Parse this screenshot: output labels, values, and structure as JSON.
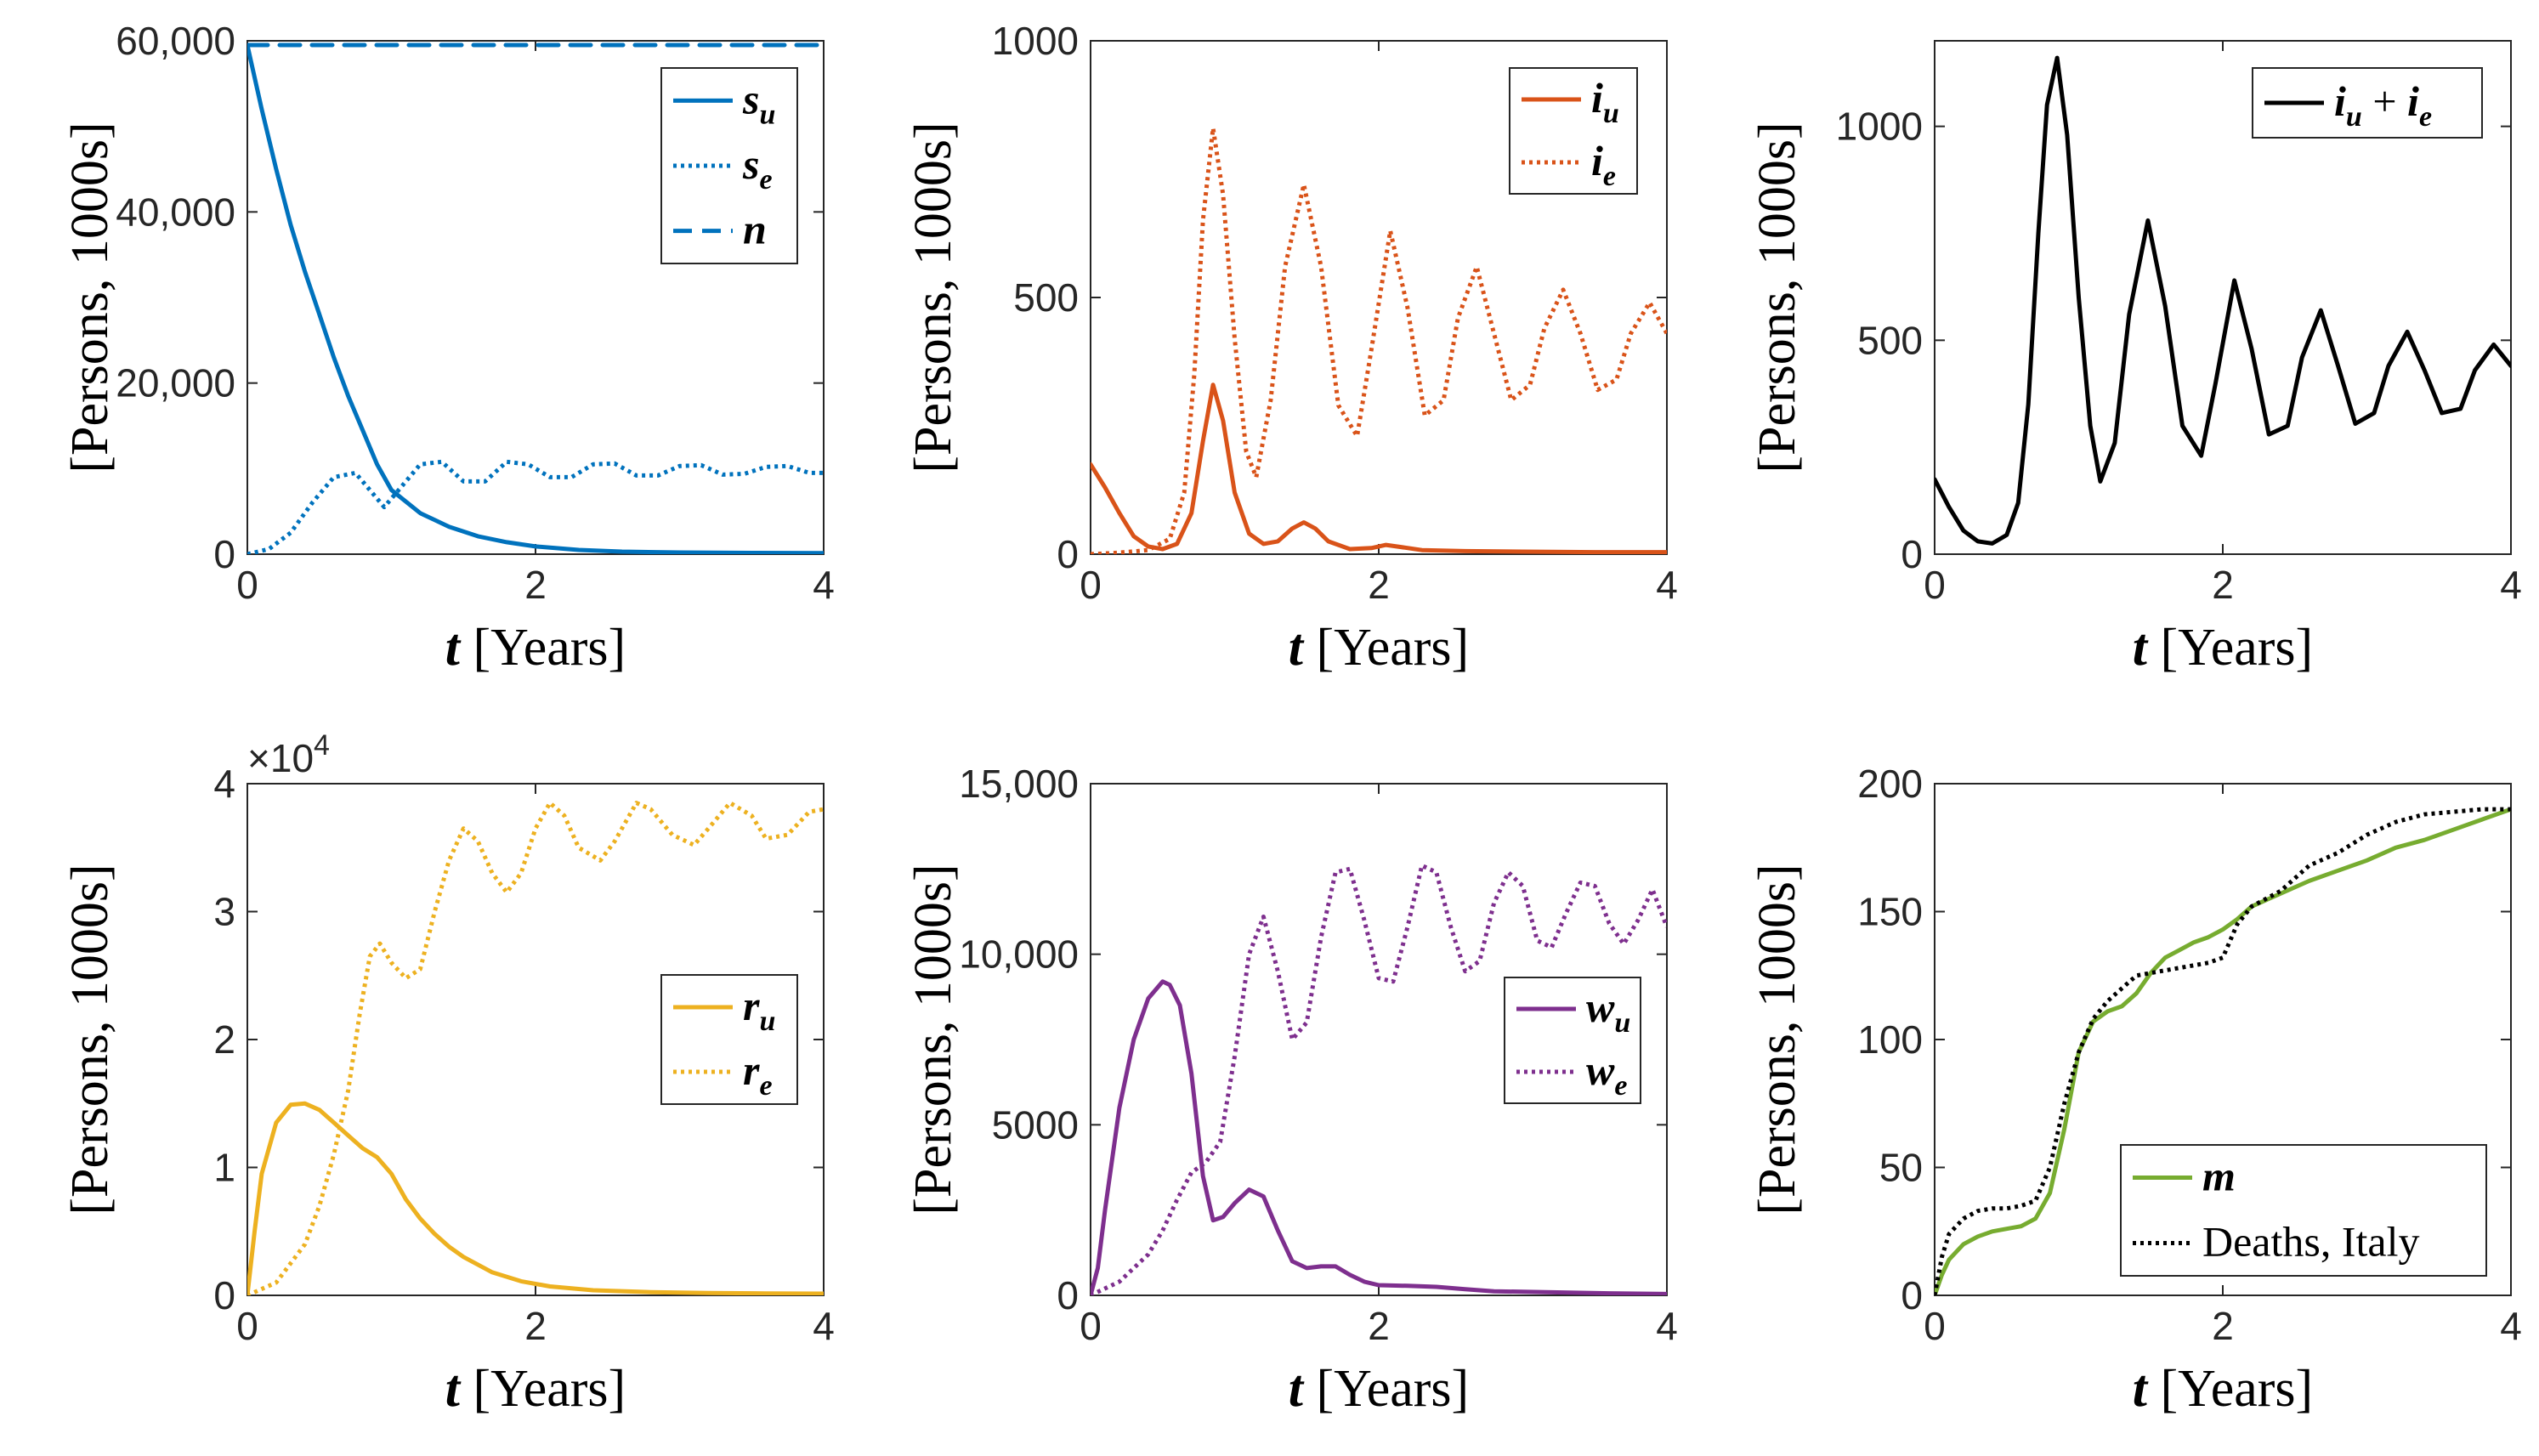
{
  "chart_data": [
    {
      "id": "su-se-n",
      "type": "line",
      "xlabel": "t [Years]",
      "ylabel": "[Persons, 1000s]",
      "xlim": [
        0,
        4
      ],
      "ylim": [
        0,
        60000
      ],
      "xticks": [
        0,
        2,
        4
      ],
      "xtick_labels": [
        "0",
        "2",
        "4"
      ],
      "yticks": [
        0,
        20000,
        40000,
        60000
      ],
      "ytick_labels": [
        "0",
        "20,000",
        "40,000",
        "60,000"
      ],
      "legend_position": "top-right",
      "series": [
        {
          "name": "s_u",
          "label": "s",
          "sub": "u",
          "color": "#0072BD",
          "style": "solid",
          "x": [
            0,
            0.1,
            0.2,
            0.3,
            0.4,
            0.5,
            0.6,
            0.7,
            0.8,
            0.9,
            1.0,
            1.2,
            1.4,
            1.6,
            1.8,
            2.0,
            2.3,
            2.6,
            3.0,
            3.5,
            4.0
          ],
          "y": [
            59500,
            52000,
            45000,
            38500,
            33000,
            28000,
            23000,
            18500,
            14500,
            10500,
            7500,
            4800,
            3200,
            2100,
            1400,
            900,
            500,
            300,
            200,
            150,
            120
          ]
        },
        {
          "name": "s_e",
          "label": "s",
          "sub": "e",
          "color": "#0072BD",
          "style": "dotted",
          "x": [
            0,
            0.15,
            0.3,
            0.45,
            0.6,
            0.75,
            0.85,
            0.95,
            1.05,
            1.2,
            1.35,
            1.5,
            1.65,
            1.8,
            1.95,
            2.1,
            2.25,
            2.4,
            2.55,
            2.7,
            2.85,
            3.0,
            3.15,
            3.3,
            3.45,
            3.6,
            3.75,
            3.9,
            4.0
          ],
          "y": [
            0,
            600,
            2500,
            6000,
            9000,
            9500,
            7500,
            5500,
            7500,
            10500,
            10800,
            8500,
            8500,
            10800,
            10500,
            9000,
            9000,
            10500,
            10600,
            9200,
            9200,
            10300,
            10400,
            9300,
            9400,
            10200,
            10300,
            9500,
            9500
          ]
        },
        {
          "name": "n",
          "label": "n",
          "sub": "",
          "color": "#0072BD",
          "style": "dashed",
          "x": [
            0,
            4
          ],
          "y": [
            59500,
            59500
          ]
        }
      ]
    },
    {
      "id": "iu-ie",
      "type": "line",
      "xlabel": "t [Years]",
      "ylabel": "[Persons, 1000s]",
      "xlim": [
        0,
        4
      ],
      "ylim": [
        0,
        1000
      ],
      "xticks": [
        0,
        2,
        4
      ],
      "xtick_labels": [
        "0",
        "2",
        "4"
      ],
      "yticks": [
        0,
        500,
        1000
      ],
      "ytick_labels": [
        "0",
        "500",
        "1000"
      ],
      "legend_position": "top-right",
      "series": [
        {
          "name": "i_u",
          "label": "i",
          "sub": "u",
          "color": "#D95319",
          "style": "solid",
          "x": [
            0,
            0.1,
            0.2,
            0.3,
            0.4,
            0.5,
            0.6,
            0.7,
            0.78,
            0.85,
            0.92,
            1.0,
            1.1,
            1.2,
            1.3,
            1.4,
            1.48,
            1.56,
            1.65,
            1.8,
            1.95,
            2.05,
            2.15,
            2.3,
            2.6,
            3.0,
            3.5,
            4.0
          ],
          "y": [
            175,
            130,
            80,
            35,
            15,
            10,
            20,
            80,
            220,
            330,
            260,
            120,
            40,
            20,
            25,
            50,
            62,
            50,
            25,
            10,
            12,
            18,
            14,
            8,
            6,
            5,
            4,
            4
          ]
        },
        {
          "name": "i_e",
          "label": "i",
          "sub": "e",
          "color": "#D95319",
          "style": "dotted",
          "x": [
            0,
            0.2,
            0.4,
            0.55,
            0.65,
            0.72,
            0.78,
            0.85,
            0.92,
            1.0,
            1.08,
            1.15,
            1.25,
            1.35,
            1.48,
            1.6,
            1.72,
            1.85,
            1.95,
            2.08,
            2.2,
            2.32,
            2.45,
            2.55,
            2.68,
            2.8,
            2.92,
            3.05,
            3.15,
            3.28,
            3.4,
            3.52,
            3.65,
            3.75,
            3.88,
            4.0
          ],
          "y": [
            0,
            3,
            8,
            30,
            120,
            350,
            650,
            830,
            700,
            420,
            200,
            150,
            300,
            560,
            720,
            560,
            290,
            230,
            400,
            630,
            480,
            270,
            300,
            460,
            560,
            430,
            300,
            330,
            440,
            515,
            430,
            320,
            340,
            430,
            490,
            430
          ]
        }
      ]
    },
    {
      "id": "iu-plus-ie",
      "type": "line",
      "xlabel": "t [Years]",
      "ylabel": "[Persons, 1000s]",
      "xlim": [
        0,
        4
      ],
      "ylim": [
        0,
        1200
      ],
      "xticks": [
        0,
        2,
        4
      ],
      "xtick_labels": [
        "0",
        "2",
        "4"
      ],
      "yticks": [
        0,
        500,
        1000
      ],
      "ytick_labels": [
        "0",
        "500",
        "1000"
      ],
      "legend_position": "top-right",
      "series": [
        {
          "name": "i_u + i_e",
          "label": "i",
          "sub": "u",
          "label2": "i",
          "sub2": "e",
          "color": "#000000",
          "style": "solid",
          "x": [
            0,
            0.1,
            0.2,
            0.3,
            0.4,
            0.5,
            0.58,
            0.65,
            0.72,
            0.78,
            0.85,
            0.92,
            1.0,
            1.08,
            1.15,
            1.25,
            1.35,
            1.48,
            1.6,
            1.72,
            1.85,
            1.95,
            2.08,
            2.2,
            2.32,
            2.45,
            2.55,
            2.68,
            2.8,
            2.92,
            3.05,
            3.15,
            3.28,
            3.4,
            3.52,
            3.65,
            3.75,
            3.88,
            4.0
          ],
          "y": [
            175,
            110,
            55,
            30,
            25,
            45,
            120,
            350,
            750,
            1050,
            1160,
            980,
            600,
            300,
            170,
            260,
            560,
            780,
            580,
            300,
            230,
            400,
            640,
            480,
            280,
            300,
            460,
            570,
            440,
            305,
            330,
            440,
            520,
            430,
            330,
            340,
            430,
            490,
            440
          ]
        }
      ]
    },
    {
      "id": "ru-re",
      "type": "line",
      "xlabel": "t [Years]",
      "ylabel": "[Persons, 1000s]",
      "exponent_label": "×10",
      "exponent_power": "4",
      "xlim": [
        0,
        4
      ],
      "ylim": [
        0,
        40000
      ],
      "xticks": [
        0,
        2,
        4
      ],
      "xtick_labels": [
        "0",
        "2",
        "4"
      ],
      "yticks": [
        0,
        10000,
        20000,
        30000,
        40000
      ],
      "ytick_labels": [
        "0",
        "1",
        "2",
        "3",
        "4"
      ],
      "legend_position": "right",
      "series": [
        {
          "name": "r_u",
          "label": "r",
          "sub": "u",
          "color": "#EDB120",
          "style": "solid",
          "x": [
            0,
            0.05,
            0.1,
            0.2,
            0.3,
            0.4,
            0.5,
            0.6,
            0.7,
            0.8,
            0.9,
            1.0,
            1.1,
            1.2,
            1.3,
            1.4,
            1.5,
            1.7,
            1.9,
            2.1,
            2.4,
            2.8,
            3.2,
            3.6,
            4.0
          ],
          "y": [
            0,
            5000,
            9500,
            13500,
            14900,
            15000,
            14500,
            13500,
            12500,
            11500,
            10800,
            9500,
            7500,
            6000,
            4800,
            3800,
            3000,
            1800,
            1100,
            700,
            400,
            250,
            180,
            150,
            130
          ]
        },
        {
          "name": "r_e",
          "label": "r",
          "sub": "e",
          "color": "#EDB120",
          "style": "dotted",
          "x": [
            0,
            0.2,
            0.4,
            0.5,
            0.6,
            0.7,
            0.78,
            0.85,
            0.92,
            1.0,
            1.1,
            1.2,
            1.3,
            1.4,
            1.5,
            1.6,
            1.7,
            1.8,
            1.9,
            2.0,
            2.1,
            2.2,
            2.3,
            2.45,
            2.55,
            2.7,
            2.8,
            2.95,
            3.1,
            3.2,
            3.35,
            3.5,
            3.6,
            3.75,
            3.9,
            4.0
          ],
          "y": [
            0,
            1000,
            4000,
            7000,
            11000,
            16000,
            22000,
            26500,
            27500,
            26000,
            24800,
            25500,
            30000,
            34000,
            36500,
            35500,
            33000,
            31500,
            33000,
            36500,
            38500,
            37500,
            35000,
            34000,
            35500,
            38500,
            38000,
            36000,
            35200,
            36500,
            38500,
            37500,
            35700,
            36000,
            37800,
            38000
          ]
        }
      ]
    },
    {
      "id": "wu-we",
      "type": "line",
      "xlabel": "t [Years]",
      "ylabel": "[Persons, 1000s]",
      "xlim": [
        0,
        4
      ],
      "ylim": [
        0,
        15000
      ],
      "xticks": [
        0,
        2,
        4
      ],
      "xtick_labels": [
        "0",
        "2",
        "4"
      ],
      "yticks": [
        0,
        5000,
        10000,
        15000
      ],
      "ytick_labels": [
        "0",
        "5000",
        "10,000",
        "15,000"
      ],
      "legend_position": "right",
      "series": [
        {
          "name": "w_u",
          "label": "w",
          "sub": "u",
          "color": "#7E2F8E",
          "style": "solid",
          "x": [
            0,
            0.05,
            0.1,
            0.2,
            0.3,
            0.4,
            0.5,
            0.55,
            0.62,
            0.7,
            0.78,
            0.85,
            0.92,
            1.0,
            1.1,
            1.2,
            1.3,
            1.4,
            1.5,
            1.6,
            1.7,
            1.8,
            1.9,
            2.0,
            2.2,
            2.4,
            2.6,
            2.8,
            3.2,
            3.6,
            4.0
          ],
          "y": [
            0,
            800,
            2500,
            5500,
            7500,
            8700,
            9200,
            9100,
            8500,
            6500,
            3500,
            2200,
            2300,
            2700,
            3100,
            2900,
            1900,
            1000,
            800,
            850,
            850,
            600,
            400,
            300,
            280,
            250,
            180,
            120,
            90,
            60,
            40
          ]
        },
        {
          "name": "w_e",
          "label": "w",
          "sub": "e",
          "color": "#7E2F8E",
          "style": "dotted",
          "x": [
            0,
            0.2,
            0.4,
            0.5,
            0.6,
            0.7,
            0.8,
            0.9,
            1.0,
            1.1,
            1.2,
            1.3,
            1.4,
            1.5,
            1.6,
            1.7,
            1.8,
            1.9,
            2.0,
            2.1,
            2.2,
            2.3,
            2.4,
            2.5,
            2.6,
            2.7,
            2.8,
            2.9,
            3.0,
            3.1,
            3.2,
            3.3,
            3.4,
            3.5,
            3.6,
            3.7,
            3.8,
            3.9,
            4.0
          ],
          "y": [
            0,
            400,
            1200,
            1900,
            2800,
            3600,
            3900,
            4500,
            7000,
            10000,
            11100,
            9500,
            7500,
            8000,
            10500,
            12400,
            12500,
            11000,
            9300,
            9200,
            10800,
            12600,
            12400,
            10800,
            9500,
            9800,
            11500,
            12400,
            12000,
            10400,
            10200,
            11200,
            12100,
            12000,
            10900,
            10300,
            11000,
            11900,
            10800
          ]
        }
      ]
    },
    {
      "id": "m-deaths",
      "type": "line",
      "xlabel": "t [Years]",
      "ylabel": "[Persons, 1000s]",
      "xlim": [
        0,
        4
      ],
      "ylim": [
        0,
        200
      ],
      "xticks": [
        0,
        2,
        4
      ],
      "xtick_labels": [
        "0",
        "2",
        "4"
      ],
      "yticks": [
        0,
        50,
        100,
        150,
        200
      ],
      "ytick_labels": [
        "0",
        "50",
        "100",
        "150",
        "200"
      ],
      "legend_position": "bottom-right",
      "series": [
        {
          "name": "m",
          "label": "m",
          "sub": "",
          "color": "#77AC30",
          "style": "solid",
          "x": [
            0,
            0.05,
            0.1,
            0.2,
            0.3,
            0.4,
            0.5,
            0.6,
            0.7,
            0.8,
            0.9,
            1.0,
            1.1,
            1.2,
            1.3,
            1.4,
            1.5,
            1.6,
            1.7,
            1.8,
            1.9,
            2.0,
            2.1,
            2.2,
            2.4,
            2.6,
            2.8,
            3.0,
            3.2,
            3.4,
            3.6,
            3.8,
            4.0
          ],
          "y": [
            0,
            8,
            14,
            20,
            23,
            25,
            26,
            27,
            30,
            40,
            65,
            95,
            107,
            111,
            113,
            118,
            126,
            132,
            135,
            138,
            140,
            143,
            147,
            152,
            157,
            162,
            166,
            170,
            175,
            178,
            182,
            186,
            190
          ]
        },
        {
          "name": "Deaths, Italy",
          "label": "Deaths, Italy",
          "sub": "",
          "color": "#000000",
          "style": "dotted",
          "x": [
            0,
            0.05,
            0.1,
            0.2,
            0.3,
            0.4,
            0.5,
            0.6,
            0.7,
            0.8,
            0.9,
            1.0,
            1.1,
            1.2,
            1.3,
            1.4,
            1.5,
            1.6,
            1.7,
            1.8,
            1.9,
            2.0,
            2.1,
            2.2,
            2.4,
            2.6,
            2.8,
            3.0,
            3.2,
            3.4,
            3.6,
            3.8,
            4.0
          ],
          "y": [
            0,
            15,
            24,
            30,
            33,
            34,
            34,
            35,
            37,
            50,
            75,
            95,
            108,
            115,
            120,
            125,
            126,
            127,
            128,
            129,
            130,
            132,
            145,
            152,
            158,
            168,
            173,
            180,
            185,
            188,
            189,
            190,
            190
          ]
        }
      ]
    }
  ]
}
